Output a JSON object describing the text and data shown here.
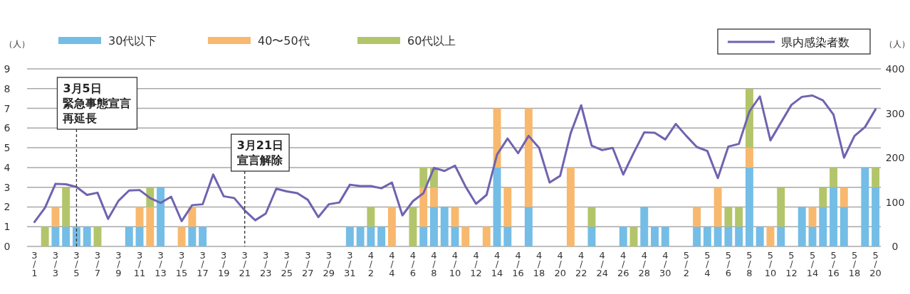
{
  "chart_data": {
    "type": "bar",
    "stacked": true,
    "categories": [
      "3/1",
      null,
      "3/3",
      null,
      "3/5",
      null,
      "3/7",
      null,
      "3/9",
      null,
      "3/11",
      null,
      "3/13",
      null,
      "3/15",
      null,
      "3/17",
      null,
      "3/19",
      null,
      "3/21",
      null,
      "3/23",
      null,
      "3/25",
      null,
      "3/27",
      null,
      "3/29",
      null,
      "3/31",
      null,
      "4/2",
      null,
      "4/4",
      null,
      "4/6",
      null,
      "4/8",
      null,
      "4/10",
      null,
      "4/12",
      null,
      "4/14",
      null,
      "4/16",
      null,
      "4/18",
      null,
      "4/20",
      null,
      "4/22",
      null,
      "4/24",
      null,
      "4/26",
      null,
      "4/28",
      null,
      "4/30",
      null,
      "5/2",
      null,
      "5/4",
      null,
      "5/6",
      null,
      "5/8",
      null,
      "5/10",
      null,
      "5/12",
      null,
      "5/14",
      null,
      "5/16",
      null,
      "5/18",
      null,
      "5/20"
    ],
    "series": [
      {
        "name": "30代以下",
        "color": "#74bde6",
        "values": [
          0,
          0,
          1,
          1,
          1,
          1,
          0,
          0,
          0,
          1,
          1,
          0,
          3,
          0,
          0,
          1,
          1,
          0,
          0,
          0,
          0,
          0,
          0,
          0,
          0,
          0,
          0,
          0,
          0,
          0,
          1,
          1,
          1,
          1,
          0,
          0,
          0,
          1,
          2,
          2,
          1,
          0,
          0,
          0,
          4,
          1,
          0,
          2,
          0,
          0,
          0,
          0,
          0,
          1,
          0,
          0,
          1,
          0,
          2,
          1,
          1,
          0,
          0,
          1,
          1,
          1,
          1,
          1,
          4,
          1,
          0,
          1,
          0,
          2,
          1,
          2,
          3,
          2,
          0,
          4,
          3
        ]
      },
      {
        "name": "40〜50代",
        "color": "#f8b86e",
        "values": [
          0,
          0,
          1,
          0,
          0,
          0,
          0,
          0,
          0,
          0,
          1,
          2,
          0,
          0,
          1,
          1,
          0,
          0,
          0,
          0,
          0,
          0,
          0,
          0,
          0,
          0,
          0,
          0,
          0,
          0,
          0,
          0,
          0,
          0,
          2,
          0,
          0,
          2,
          1,
          0,
          1,
          1,
          0,
          1,
          3,
          2,
          0,
          5,
          0,
          0,
          0,
          4,
          0,
          0,
          0,
          0,
          0,
          0,
          0,
          0,
          0,
          0,
          0,
          1,
          0,
          2,
          0,
          0,
          1,
          0,
          1,
          0,
          0,
          0,
          1,
          0,
          0,
          1,
          0,
          0,
          0
        ]
      },
      {
        "name": "60代以上",
        "color": "#b3c56a",
        "values": [
          0,
          1,
          0,
          2,
          0,
          0,
          1,
          0,
          0,
          0,
          0,
          1,
          0,
          0,
          0,
          0,
          0,
          0,
          0,
          0,
          0,
          0,
          0,
          0,
          0,
          0,
          0,
          0,
          0,
          0,
          0,
          0,
          1,
          0,
          0,
          0,
          2,
          1,
          1,
          0,
          0,
          0,
          0,
          0,
          0,
          0,
          0,
          0,
          0,
          0,
          0,
          0,
          0,
          1,
          0,
          0,
          0,
          1,
          0,
          0,
          0,
          0,
          0,
          0,
          0,
          0,
          1,
          1,
          3,
          0,
          0,
          2,
          0,
          0,
          0,
          1,
          1,
          0,
          0,
          0,
          1
        ]
      },
      {
        "name": "県内感染者数",
        "type": "line",
        "axis": "y2",
        "color": "#6f63b0",
        "values": [
          55,
          87,
          141,
          140,
          134,
          116,
          121,
          62,
          103,
          126,
          127,
          109,
          98,
          112,
          57,
          93,
          95,
          162,
          113,
          109,
          81,
          59,
          74,
          130,
          124,
          120,
          105,
          66,
          95,
          99,
          139,
          136,
          136,
          131,
          144,
          70,
          102,
          120,
          177,
          170,
          182,
          135,
          96,
          116,
          207,
          243,
          210,
          249,
          222,
          144,
          159,
          255,
          318,
          227,
          217,
          222,
          162,
          211,
          257,
          256,
          241,
          276,
          249,
          224,
          215,
          154,
          225,
          231,
          304,
          338,
          239,
          279,
          319,
          337,
          340,
          329,
          297,
          200,
          249,
          269,
          309
        ]
      }
    ],
    "ylabel": "（人）",
    "y2label": "（人）",
    "ylim": [
      0,
      9
    ],
    "yticks": [
      0,
      1,
      2,
      3,
      4,
      5,
      6,
      7,
      8,
      9
    ],
    "y2lim": [
      0,
      400
    ],
    "y2ticks": [
      0,
      100,
      200,
      300,
      400
    ],
    "grid": "y",
    "legend": "top",
    "marker": "none",
    "line_style": "solid",
    "ref_lines": [
      {
        "axis": "x",
        "value": "3/5",
        "label": [
          "3月5日",
          "緊急事態宣言",
          "再延長"
        ],
        "line_style": "dashed"
      },
      {
        "axis": "x",
        "value": "3/21",
        "label": [
          "3月21日",
          "宣言解除"
        ],
        "line_style": "dashed"
      }
    ]
  }
}
